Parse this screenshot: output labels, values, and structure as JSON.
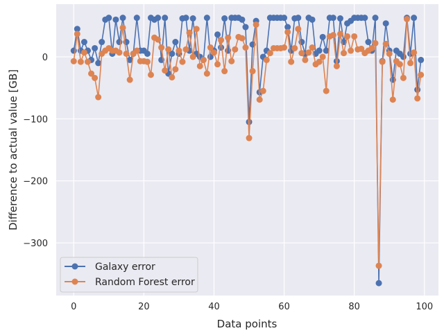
{
  "chart_data": {
    "type": "line",
    "title": "",
    "xlabel": "Data points",
    "ylabel": "Difference to actual value [GB]",
    "xlim": [
      -5,
      104
    ],
    "ylim": [
      -385,
      85
    ],
    "xticks": [
      0,
      20,
      40,
      60,
      80,
      100
    ],
    "yticks": [
      0,
      -100,
      -200,
      -300
    ],
    "ytick_labels": [
      "0",
      "−100",
      "−200",
      "−300"
    ],
    "grid": true,
    "legend_position": "lower-left",
    "colors": {
      "Galaxy error": "#4c72b0",
      "Random Forest error": "#dd8452",
      "background": "#eaeaf2",
      "grid": "#ffffff"
    },
    "series": [
      {
        "name": "Galaxy error",
        "values": [
          10,
          45,
          10,
          24,
          10,
          -5,
          14,
          -10,
          24,
          60,
          63,
          5,
          60,
          24,
          63,
          24,
          -5,
          5,
          63,
          10,
          10,
          5,
          63,
          60,
          63,
          -5,
          63,
          -27,
          5,
          24,
          5,
          62,
          63,
          10,
          62,
          5,
          0,
          -5,
          63,
          0,
          10,
          36,
          15,
          62,
          10,
          63,
          63,
          63,
          60,
          48,
          -105,
          20,
          58,
          -57,
          0,
          10,
          63,
          63,
          63,
          63,
          63,
          48,
          10,
          62,
          63,
          24,
          5,
          63,
          60,
          5,
          10,
          32,
          10,
          63,
          63,
          -7,
          62,
          24,
          54,
          58,
          63,
          63,
          63,
          63,
          24,
          10,
          63,
          -365,
          -7,
          54,
          10,
          -37,
          10,
          5,
          0,
          63,
          5,
          63,
          -53,
          -5
        ]
      },
      {
        "name": "Random Forest error",
        "values": [
          -7,
          37,
          -8,
          7,
          -8,
          -27,
          -34,
          -65,
          5,
          10,
          14,
          10,
          10,
          7,
          47,
          5,
          -37,
          5,
          10,
          -7,
          -7,
          -8,
          -29,
          31,
          28,
          15,
          -22,
          12,
          -33,
          -20,
          10,
          -8,
          12,
          39,
          0,
          45,
          -15,
          -5,
          -27,
          15,
          7,
          -12,
          27,
          -23,
          31,
          -7,
          12,
          32,
          30,
          15,
          -131,
          -23,
          52,
          -69,
          -55,
          -5,
          6,
          14,
          14,
          14,
          15,
          40,
          -8,
          14,
          45,
          6,
          -5,
          7,
          15,
          -12,
          -8,
          0,
          -55,
          33,
          35,
          -15,
          37,
          6,
          33,
          10,
          33,
          12,
          13,
          6,
          10,
          14,
          22,
          -337,
          -8,
          21,
          5,
          -69,
          -7,
          -12,
          -34,
          61,
          -10,
          7,
          -67,
          -29
        ]
      }
    ]
  }
}
